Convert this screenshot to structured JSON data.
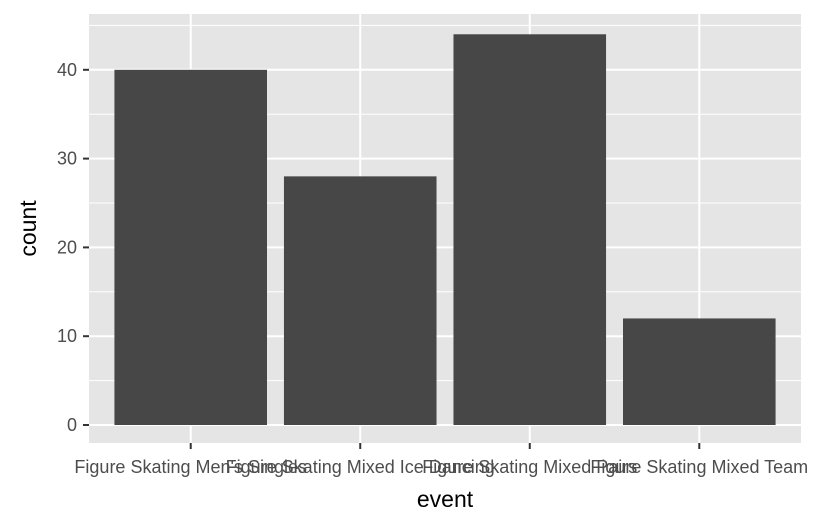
{
  "chart_data": {
    "type": "bar",
    "categories": [
      "Figure Skating Men's Singles",
      "Figure Skating Mixed Ice Dancing",
      "Figure Skating Mixed Pairs",
      "Figure Skating Mixed Team"
    ],
    "values": [
      40,
      28,
      44,
      12
    ],
    "xlabel": "event",
    "ylabel": "count",
    "ylim": [
      0,
      46
    ],
    "yticks": [
      0,
      10,
      20,
      30,
      40
    ],
    "grid": true,
    "colors": {
      "panel": "#e5e5e5",
      "grid": "#ffffff",
      "bar": "#474747",
      "tick": "#333333"
    }
  }
}
